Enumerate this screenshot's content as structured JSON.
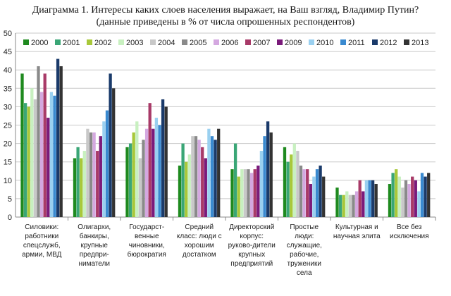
{
  "chart_data": {
    "type": "bar",
    "title": "Диаграмма 1. Интересы каких слоев населения выражает, на Ваш взгляд, Владимир Путин?",
    "subtitle": "(данные приведены в % от числа опрошенных респондентов)",
    "ylim": [
      0,
      50
    ],
    "yticks": [
      0,
      5,
      10,
      15,
      20,
      25,
      30,
      35,
      40,
      45,
      50
    ],
    "grid": true,
    "legend_position": "top-right",
    "categories": [
      [
        "Силовики:",
        "работники",
        "спецслужб,",
        "армии, МВД"
      ],
      [
        "Олигархи,",
        "банкиры,",
        "крупные",
        "предпри-",
        "ниматели"
      ],
      [
        "Государст-",
        "венные",
        "чиновники,",
        "бюрократия"
      ],
      [
        "Средний",
        "класс: люди с",
        "хорошим",
        "достатком"
      ],
      [
        "Директорский",
        "корпус:",
        "руково-дители",
        "крупных",
        "предприятий"
      ],
      [
        "Простые",
        "люди:",
        "служащие,",
        "рабочие,",
        "труженики",
        "села"
      ],
      [
        "Культурная и",
        "научная элита"
      ],
      [
        "Все без",
        "исключения"
      ]
    ],
    "series": [
      {
        "name": "2000",
        "color": "#1f8a1f",
        "values": [
          39,
          16,
          19,
          14,
          13,
          19,
          8,
          9
        ]
      },
      {
        "name": "2001",
        "color": "#3aa676",
        "values": [
          31,
          19,
          20,
          20,
          20,
          15,
          6,
          12
        ]
      },
      {
        "name": "2002",
        "color": "#a8c83a",
        "values": [
          30,
          16,
          23,
          15,
          11,
          17,
          6,
          13
        ]
      },
      {
        "name": "2003",
        "color": "#c8f0c0",
        "values": [
          35,
          18,
          26,
          17,
          13,
          20,
          7,
          11
        ]
      },
      {
        "name": "2004",
        "color": "#c8c8c8",
        "values": [
          32,
          24,
          16,
          22,
          13,
          18,
          6,
          8
        ]
      },
      {
        "name": "2005",
        "color": "#8a8a8a",
        "values": [
          41,
          23,
          21,
          22,
          13,
          14,
          6,
          10
        ]
      },
      {
        "name": "2006",
        "color": "#d4a8e0",
        "values": [
          34,
          23,
          24,
          21,
          12,
          13,
          7,
          9
        ]
      },
      {
        "name": "2007",
        "color": "#a83a68",
        "values": [
          39,
          18,
          31,
          19,
          13,
          13,
          10,
          11
        ]
      },
      {
        "name": "2009",
        "color": "#7a1a7a",
        "values": [
          27,
          22,
          24,
          16,
          14,
          9,
          7,
          10
        ]
      },
      {
        "name": "2010",
        "color": "#9ad0f0",
        "values": [
          34,
          26,
          27,
          24,
          18,
          11,
          10,
          7
        ]
      },
      {
        "name": "2011",
        "color": "#3a8ad0",
        "values": [
          33,
          29,
          25,
          22,
          22,
          13,
          10,
          12
        ]
      },
      {
        "name": "2012",
        "color": "#1a3a6a",
        "values": [
          43,
          39,
          32,
          21,
          26,
          14,
          10,
          11
        ]
      },
      {
        "name": "2013",
        "color": "#333333",
        "values": [
          41,
          35,
          30,
          24,
          23,
          11,
          9,
          12
        ]
      }
    ]
  }
}
